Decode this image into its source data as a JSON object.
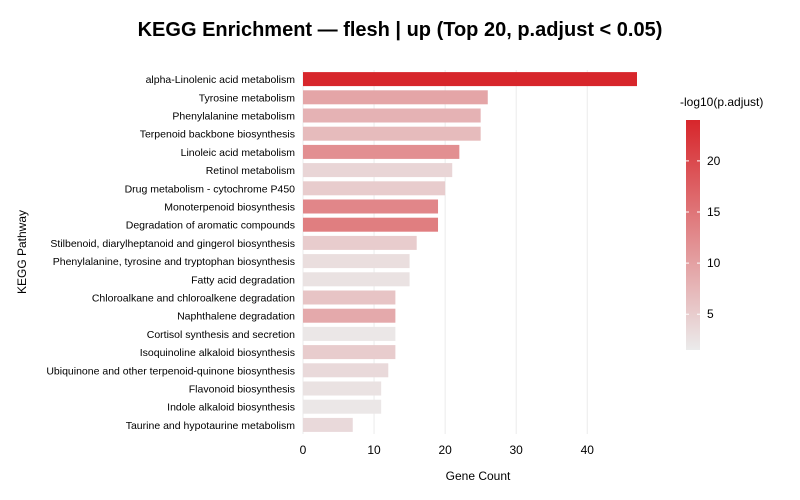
{
  "chart_data": {
    "type": "bar",
    "orientation": "horizontal",
    "title": "KEGG Enrichment — flesh | up (Top 20, p.adjust < 0.05)",
    "xlabel": "Gene Count",
    "ylabel": "KEGG Pathway",
    "xlim": [
      0,
      47
    ],
    "xticks": [
      0,
      10,
      20,
      30,
      40
    ],
    "grid": true,
    "categories": [
      "alpha-Linolenic acid metabolism",
      "Tyrosine metabolism",
      "Phenylalanine metabolism",
      "Terpenoid backbone biosynthesis",
      "Linoleic acid metabolism",
      "Retinol metabolism",
      "Drug metabolism - cytochrome P450",
      "Monoterpenoid biosynthesis",
      "Degradation of aromatic compounds",
      "Stilbenoid, diarylheptanoid and gingerol biosynthesis",
      "Phenylalanine, tyrosine and tryptophan biosynthesis",
      "Fatty acid degradation",
      "Chloroalkane and chloroalkene degradation",
      "Naphthalene degradation",
      "Cortisol synthesis and secretion",
      "Isoquinoline alkaloid biosynthesis",
      "Ubiquinone and other terpenoid-quinone biosynthesis",
      "Flavonoid biosynthesis",
      "Indole alkaloid biosynthesis",
      "Taurine and hypotaurine metabolism"
    ],
    "values": [
      47,
      26,
      25,
      25,
      22,
      21,
      20,
      19,
      19,
      16,
      15,
      15,
      13,
      13,
      13,
      13,
      12,
      11,
      11,
      7
    ],
    "color_values": [
      24,
      9.5,
      8,
      7,
      12,
      4,
      5,
      13,
      14,
      5,
      3,
      2.5,
      6,
      9,
      2,
      5,
      3.5,
      2.5,
      2,
      3.5
    ],
    "colorbar": {
      "label": "-log10(p.adjust)",
      "min": 1.5,
      "max": 24,
      "ticks": [
        5,
        10,
        15,
        20
      ],
      "low_color": "#ebebeb",
      "high_color": "#d7262b",
      "placement": "right"
    }
  }
}
